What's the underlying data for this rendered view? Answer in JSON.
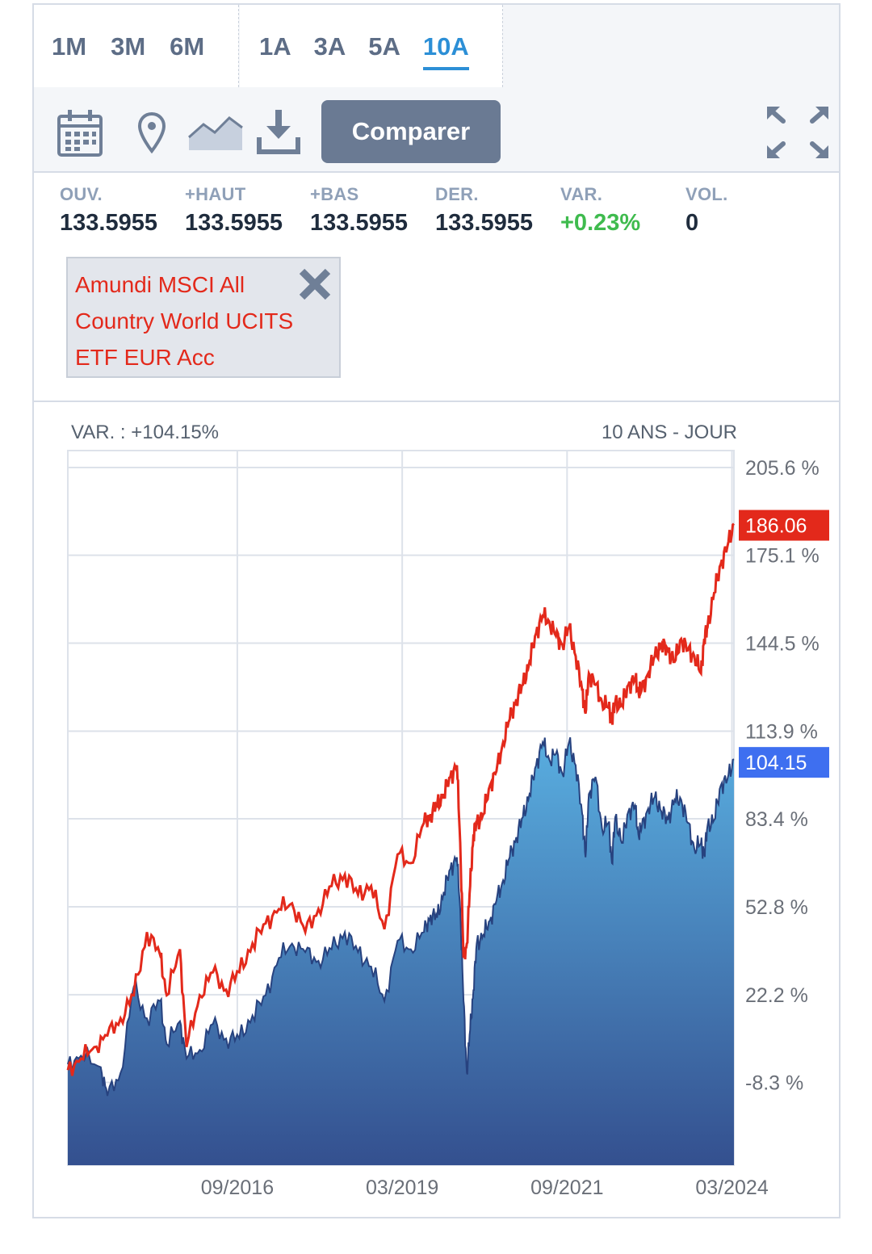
{
  "periods": {
    "group1": [
      "1M",
      "3M",
      "6M"
    ],
    "group2": [
      "1A",
      "3A",
      "5A",
      "10A"
    ],
    "active": "10A"
  },
  "toolbar": {
    "icons": [
      "calendar-icon",
      "pin-icon",
      "area-chart-icon",
      "download-icon",
      "expand-icon"
    ],
    "compare_label": "Comparer"
  },
  "stats": [
    {
      "label": "OUV.",
      "value": "133.5955"
    },
    {
      "label": "+HAUT",
      "value": "133.5955"
    },
    {
      "label": "+BAS",
      "value": "133.5955"
    },
    {
      "label": "DER.",
      "value": "133.5955"
    },
    {
      "label": "VAR.",
      "value": "+0.23%"
    },
    {
      "label": "VOL.",
      "value": "0"
    }
  ],
  "compare_chip": {
    "name": "Amundi MSCI All Country World UCITS ETF EUR Acc"
  },
  "chart_header": {
    "variation": "VAR. : +104.15%",
    "period": "10 ANS - JOUR"
  },
  "chart_data": {
    "type": "area",
    "ylim": [
      -37.1,
      211.5
    ],
    "yticks": [
      "205.6 %",
      "175.1 %",
      "144.5 %",
      "113.9 %",
      "83.4 %",
      "52.8 %",
      "22.2 %",
      "-8.3 %"
    ],
    "ytick_values": [
      205.6,
      175.1,
      144.5,
      113.9,
      83.4,
      52.8,
      22.2,
      -8.3
    ],
    "xlim": [
      2014.1,
      2024.2
    ],
    "xticks": [
      "09/2016",
      "03/2019",
      "09/2021",
      "03/2024"
    ],
    "xtick_values": [
      2016.67,
      2019.17,
      2021.67,
      2024.17
    ],
    "grid": true,
    "series": [
      {
        "color": "#3b61a9",
        "last_label": "104.15",
        "label_color": "#3e6ff0",
        "x": [
          2014.1,
          2014.3,
          2014.6,
          2014.7,
          2014.9,
          2015.1,
          2015.3,
          2015.5,
          2015.6,
          2015.8,
          2015.9,
          2016.1,
          2016.3,
          2016.5,
          2016.7,
          2016.9,
          2017.1,
          2017.3,
          2017.5,
          2017.7,
          2017.9,
          2018.1,
          2018.3,
          2018.5,
          2018.7,
          2018.9,
          2019.1,
          2019.3,
          2019.5,
          2019.6,
          2019.7,
          2019.8,
          2019.9,
          2020.0,
          2020.05,
          2020.1,
          2020.15,
          2020.2,
          2020.25,
          2020.3,
          2020.4,
          2020.5,
          2020.6,
          2020.7,
          2020.8,
          2020.9,
          2021.0,
          2021.1,
          2021.2,
          2021.3,
          2021.4,
          2021.5,
          2021.6,
          2021.7,
          2021.8,
          2021.9,
          2021.95,
          2022.0,
          2022.1,
          2022.2,
          2022.3,
          2022.35,
          2022.4,
          2022.5,
          2022.6,
          2022.7,
          2022.75,
          2022.8,
          2022.9,
          2023.0,
          2023.1,
          2023.2,
          2023.3,
          2023.4,
          2023.5,
          2023.6,
          2023.7,
          2023.75,
          2023.8,
          2023.9,
          2024.0,
          2024.1,
          2024.2
        ],
        "y": [
          -2,
          1,
          -3,
          -13,
          -5,
          25,
          14,
          20,
          5,
          13,
          0,
          3,
          12,
          7,
          7,
          15,
          22,
          35,
          40,
          37,
          34,
          38,
          44,
          37,
          32,
          20,
          41,
          38,
          44,
          50,
          49,
          58,
          66,
          70,
          52,
          20,
          -5,
          10,
          24,
          40,
          43,
          48,
          55,
          62,
          70,
          77,
          84,
          92,
          102,
          110,
          104,
          106,
          99,
          110,
          102,
          85,
          70,
          92,
          98,
          80,
          82,
          68,
          84,
          75,
          86,
          88,
          78,
          80,
          87,
          91,
          86,
          83,
          90,
          90,
          82,
          73,
          75,
          71,
          81,
          83,
          95,
          97,
          104.15
        ]
      },
      {
        "color": "#e3291b",
        "last_label": "186.06",
        "label_color": "#e3291b",
        "x": [
          2014.1,
          2014.3,
          2014.5,
          2014.7,
          2014.9,
          2015.1,
          2015.3,
          2015.5,
          2015.6,
          2015.8,
          2015.9,
          2016.1,
          2016.3,
          2016.5,
          2016.7,
          2016.9,
          2017.1,
          2017.3,
          2017.5,
          2017.7,
          2017.9,
          2018.1,
          2018.3,
          2018.5,
          2018.7,
          2018.9,
          2019.1,
          2019.3,
          2019.5,
          2019.6,
          2019.7,
          2019.8,
          2019.9,
          2020.0,
          2020.05,
          2020.1,
          2020.15,
          2020.2,
          2020.25,
          2020.3,
          2020.4,
          2020.5,
          2020.6,
          2020.7,
          2020.8,
          2020.9,
          2021.0,
          2021.1,
          2021.2,
          2021.3,
          2021.4,
          2021.5,
          2021.6,
          2021.7,
          2021.8,
          2021.9,
          2021.95,
          2022.0,
          2022.1,
          2022.2,
          2022.3,
          2022.35,
          2022.4,
          2022.5,
          2022.6,
          2022.7,
          2022.75,
          2022.8,
          2022.9,
          2023.0,
          2023.1,
          2023.2,
          2023.3,
          2023.4,
          2023.5,
          2023.6,
          2023.7,
          2023.75,
          2023.8,
          2023.9,
          2024.0,
          2024.1,
          2024.2
        ],
        "y": [
          -4,
          0,
          4,
          8,
          14,
          22,
          44,
          36,
          22,
          38,
          4,
          22,
          30,
          24,
          30,
          40,
          47,
          52,
          54,
          44,
          52,
          60,
          64,
          57,
          60,
          45,
          71,
          68,
          82,
          85,
          88,
          92,
          98,
          102,
          75,
          35,
          40,
          60,
          78,
          82,
          85,
          95,
          100,
          110,
          118,
          125,
          130,
          138,
          148,
          154,
          152,
          147,
          144,
          150,
          140,
          128,
          120,
          134,
          130,
          124,
          122,
          118,
          124,
          123,
          130,
          132,
          128,
          128,
          134,
          140,
          144,
          142,
          138,
          146,
          142,
          140,
          134,
          146,
          150,
          162,
          172,
          178,
          186.06
        ]
      }
    ]
  }
}
